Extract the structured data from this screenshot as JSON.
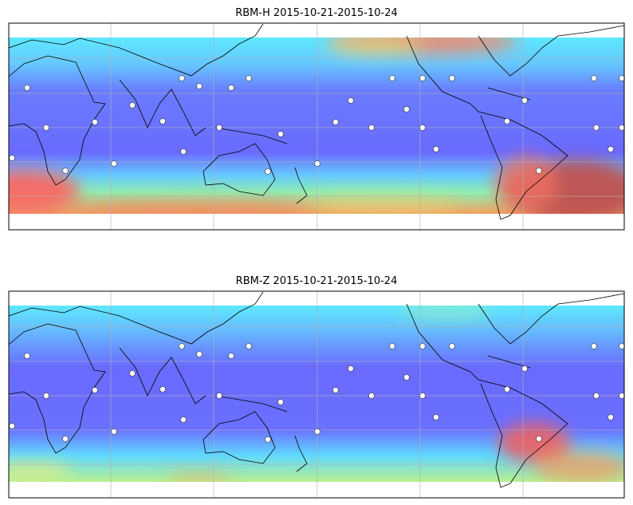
{
  "panels": [
    {
      "title": "RBM-H 2015-10-21-2015-10-24"
    },
    {
      "title": "RBM-Z 2015-10-21-2015-10-24"
    }
  ]
}
